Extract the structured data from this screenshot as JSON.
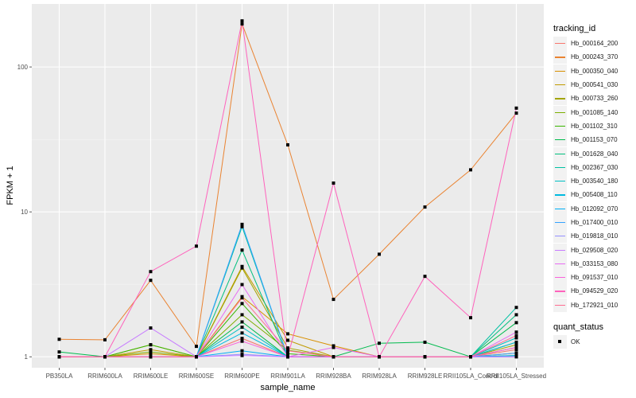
{
  "chart_data": {
    "type": "line",
    "title": "",
    "xlabel": "sample_name",
    "ylabel": "FPKM + 1",
    "y_scale": "log10",
    "ylim": [
      0.84,
      272
    ],
    "yticks": [
      1,
      10,
      100
    ],
    "ytick_labels": [
      "1 -",
      "10 -",
      "100 -"
    ],
    "grid": true,
    "legend_position": "right",
    "categories": [
      "PB350LA",
      "RRIM600LA",
      "RRIM600LE",
      "RRIM600SE",
      "RRIM600PE",
      "RRIM901LA",
      "RRIM928BA",
      "RRIM928LA",
      "RRIM928LE",
      "RRII105LA_Control",
      "RRII105LA_Stressed"
    ],
    "legend_title": "tracking_id",
    "series": [
      {
        "name": "Hb_000164_200",
        "color": "#F8766D",
        "values": [
          1,
          1,
          1,
          1,
          1.34,
          1,
          1,
          1,
          1,
          1,
          1.12
        ]
      },
      {
        "name": "Hb_000243_370",
        "color": "#EA8331",
        "values": [
          1.32,
          1.31,
          3.37,
          1.18,
          198,
          29,
          2.49,
          5.1,
          10.8,
          19.5,
          48
        ]
      },
      {
        "name": "Hb_000350_040",
        "color": "#D89000",
        "values": [
          1,
          1,
          1.05,
          1,
          2.6,
          1.44,
          1.19,
          1,
          1,
          1,
          1.06
        ]
      },
      {
        "name": "Hb_000541_030",
        "color": "#C09B00",
        "values": [
          1,
          1,
          1.12,
          1,
          4.2,
          1.3,
          1,
          1,
          1,
          1,
          1.16
        ]
      },
      {
        "name": "Hb_000733_260",
        "color": "#A3A500",
        "values": [
          1,
          1,
          1.21,
          1,
          4.1,
          1.15,
          1,
          1,
          1,
          1,
          1.21
        ]
      },
      {
        "name": "Hb_001085_140",
        "color": "#7CAE00",
        "values": [
          1,
          1,
          1.08,
          1,
          1.95,
          1.11,
          1,
          1,
          1,
          1,
          1.26
        ]
      },
      {
        "name": "Hb_001102_310",
        "color": "#39B600",
        "values": [
          1,
          1,
          1.21,
          1,
          2.33,
          1.05,
          1,
          1,
          1,
          1,
          1.02
        ]
      },
      {
        "name": "Hb_001153_070",
        "color": "#00BB4E",
        "values": [
          1.08,
          1,
          1,
          1,
          1.74,
          1,
          1,
          1.24,
          1.26,
          1,
          1.72
        ]
      },
      {
        "name": "Hb_001628_040",
        "color": "#00BF7D",
        "values": [
          1,
          1,
          1,
          1,
          5.45,
          1,
          1,
          1,
          1,
          1,
          1.95
        ]
      },
      {
        "name": "Hb_002367_030",
        "color": "#00C1A3",
        "values": [
          1,
          1,
          1,
          1,
          7.9,
          1,
          1,
          1,
          1,
          1,
          2.19
        ]
      },
      {
        "name": "Hb_003540_180",
        "color": "#00BFC4",
        "values": [
          1,
          1,
          1,
          1,
          1.6,
          1,
          1,
          1,
          1,
          1,
          1.35
        ]
      },
      {
        "name": "Hb_005408_110",
        "color": "#00BAE0",
        "values": [
          1,
          1,
          1,
          1,
          1.46,
          1,
          1,
          1,
          1,
          1,
          1.26
        ]
      },
      {
        "name": "Hb_012092_070",
        "color": "#00B0F6",
        "values": [
          1,
          1,
          1,
          1,
          1.1,
          1,
          1,
          1,
          1,
          1,
          1.02
        ]
      },
      {
        "name": "Hb_017400_010",
        "color": "#35A2FF",
        "values": [
          1,
          1,
          1,
          1,
          8.2,
          1,
          1,
          1,
          1,
          1,
          1.06
        ]
      },
      {
        "name": "Hb_019818_010",
        "color": "#9590FF",
        "values": [
          1,
          1,
          1,
          1,
          1.04,
          1,
          1,
          1,
          1,
          1,
          1
        ]
      },
      {
        "name": "Hb_029508_020",
        "color": "#C77CFF",
        "values": [
          1,
          1,
          1.58,
          1,
          1.02,
          1,
          1,
          1,
          1,
          1,
          1
        ]
      },
      {
        "name": "Hb_033153_080",
        "color": "#E76BF3",
        "values": [
          1,
          1,
          1,
          1,
          3.15,
          1,
          1.16,
          1,
          1,
          1,
          1.48
        ]
      },
      {
        "name": "Hb_091537_010",
        "color": "#FA62DB",
        "values": [
          1,
          1,
          1,
          1,
          1.28,
          1,
          1,
          1,
          1,
          1,
          1.16
        ]
      },
      {
        "name": "Hb_094529_020",
        "color": "#FF62BC",
        "values": [
          1,
          1,
          3.87,
          5.8,
          208,
          1,
          15.8,
          1,
          3.59,
          1.86,
          52
        ]
      },
      {
        "name": "Hb_172921_010",
        "color": "#FF6C91",
        "values": [
          1,
          1,
          1,
          1,
          2.55,
          1.1,
          1,
          1,
          1,
          1,
          1.4
        ]
      }
    ],
    "shape_legend": {
      "title": "quant_status",
      "items": [
        "OK"
      ]
    }
  }
}
